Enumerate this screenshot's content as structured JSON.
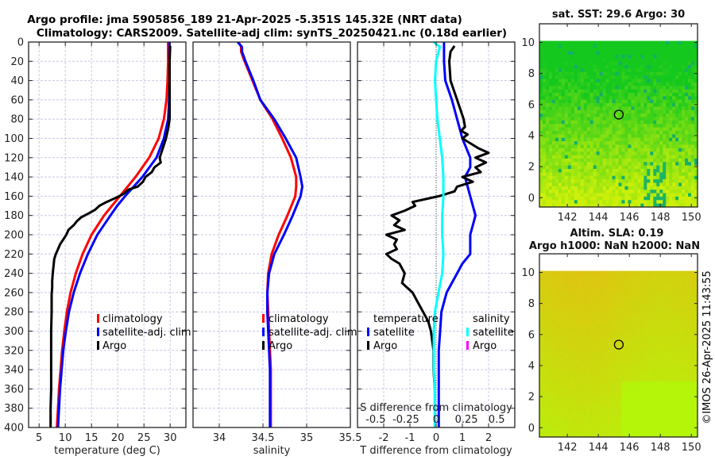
{
  "header": {
    "title_line1": "Argo profile: jma 5905856_189 21-Apr-2025 -5.351S 145.32E (NRT data)",
    "title_line2": "Climatology: CARS2009. Satellite-adj clim: synTS_20250421.nc (0.18d earlier)"
  },
  "colors": {
    "climatology": "#ff0000",
    "satellite": "#0000ff",
    "argo": "#000000",
    "salinity_satellite": "#00ffff",
    "salinity_argo": "#ff00ff",
    "grid": "#c8c8e6"
  },
  "chart_data": [
    {
      "type": "line",
      "name": "temperature-profile",
      "xlabel": "temperature (deg C)",
      "ylabel": "",
      "xlim": [
        3.0,
        33.0
      ],
      "ylim": [
        400,
        0
      ],
      "xticks": [
        5,
        10,
        15,
        20,
        25,
        30
      ],
      "yticks": [
        0,
        20,
        40,
        60,
        80,
        100,
        120,
        140,
        160,
        180,
        200,
        220,
        240,
        260,
        280,
        300,
        320,
        340,
        360,
        380,
        400
      ],
      "grid": true,
      "legend": {
        "placement": "right-center",
        "entries": [
          "climatology",
          "satellite-adj. clim",
          "Argo"
        ]
      },
      "series": [
        {
          "name": "climatology",
          "color": "#ff0000",
          "depth": [
            0,
            20,
            40,
            60,
            80,
            100,
            120,
            140,
            160,
            170,
            180,
            200,
            220,
            240,
            260,
            280,
            300,
            320,
            340,
            360,
            380,
            400
          ],
          "values": [
            29.6,
            29.6,
            29.5,
            29.3,
            28.8,
            27.8,
            26.0,
            23.4,
            20.4,
            18.9,
            17.4,
            15.0,
            13.3,
            12.0,
            11.0,
            10.3,
            9.8,
            9.4,
            9.1,
            8.8,
            8.6,
            8.4
          ]
        },
        {
          "name": "satellite-adj. clim",
          "color": "#0000ff",
          "depth": [
            0,
            20,
            40,
            60,
            80,
            100,
            120,
            140,
            160,
            170,
            180,
            200,
            220,
            240,
            260,
            280,
            300,
            320,
            340,
            360,
            380,
            400
          ],
          "values": [
            29.9,
            29.9,
            29.9,
            29.8,
            29.6,
            28.8,
            27.4,
            24.7,
            21.4,
            19.9,
            18.6,
            16.1,
            14.3,
            12.8,
            11.6,
            10.7,
            10.1,
            9.6,
            9.3,
            9.0,
            8.8,
            8.6
          ]
        },
        {
          "name": "Argo",
          "color": "#000000",
          "depth": [
            4,
            20,
            40,
            60,
            80,
            90,
            100,
            110,
            120,
            125,
            130,
            135,
            140,
            145,
            150,
            153,
            158,
            162,
            167,
            170,
            174,
            178,
            182,
            186,
            190,
            195,
            200,
            205,
            210,
            215,
            220,
            225,
            230,
            240,
            248,
            255,
            262,
            270,
            280,
            300,
            320,
            340,
            360,
            380,
            400
          ],
          "values": [
            30.0,
            29.9,
            29.9,
            29.9,
            29.9,
            29.6,
            29.2,
            28.6,
            28.0,
            28.2,
            27.0,
            26.5,
            25.3,
            24.8,
            23.8,
            22.1,
            21.0,
            19.5,
            17.5,
            16.5,
            15.7,
            14.4,
            13.0,
            12.2,
            11.6,
            10.6,
            10.2,
            9.6,
            9.0,
            8.6,
            8.2,
            7.9,
            7.8,
            7.6,
            7.5,
            7.5,
            7.4,
            7.4,
            7.4,
            7.3,
            7.3,
            7.3,
            7.3,
            7.2,
            7.2
          ]
        }
      ]
    },
    {
      "type": "line",
      "name": "salinity-profile",
      "xlabel": "salinity",
      "xlim": [
        33.7,
        35.5
      ],
      "ylim": [
        400,
        0
      ],
      "xticks": [
        34,
        34.5,
        35,
        35.5
      ],
      "grid": true,
      "legend": {
        "placement": "right-center",
        "entries": [
          "climatology",
          "satellite-adj. clim",
          "Argo"
        ]
      },
      "series": [
        {
          "name": "climatology",
          "color": "#ff0000",
          "depth": [
            0,
            5,
            10,
            20,
            40,
            60,
            80,
            100,
            120,
            140,
            150,
            160,
            180,
            200,
            220,
            240,
            260,
            280,
            300,
            320,
            340,
            360,
            380,
            400
          ],
          "values": [
            34.22,
            34.25,
            34.25,
            34.29,
            34.38,
            34.47,
            34.61,
            34.72,
            34.82,
            34.88,
            34.88,
            34.87,
            34.78,
            34.68,
            34.6,
            34.56,
            34.55,
            34.56,
            34.57,
            34.58,
            34.59,
            34.59,
            34.59,
            34.59
          ]
        },
        {
          "name": "satellite-adj. clim",
          "color": "#0000ff",
          "depth": [
            0,
            5,
            10,
            20,
            40,
            60,
            80,
            100,
            120,
            140,
            150,
            160,
            180,
            200,
            220,
            240,
            260,
            280,
            300,
            320,
            340,
            360,
            380,
            400
          ],
          "values": [
            34.21,
            34.26,
            34.26,
            34.3,
            34.39,
            34.47,
            34.63,
            34.76,
            34.88,
            34.93,
            34.95,
            34.93,
            34.84,
            34.74,
            34.63,
            34.57,
            34.55,
            34.55,
            34.56,
            34.57,
            34.58,
            34.58,
            34.58,
            34.58
          ]
        }
      ]
    },
    {
      "type": "line",
      "name": "difference-profile",
      "xlabel": "T difference from climatology",
      "xlim": [
        -3,
        3
      ],
      "ylim": [
        400,
        0
      ],
      "xticks": [
        -2,
        -1,
        0,
        1,
        2
      ],
      "secondary_axis": {
        "label": "S difference from climatology",
        "xlim": [
          -0.65,
          0.65
        ],
        "xticks": [
          -0.5,
          -0.25,
          0,
          0.25,
          0.5
        ],
        "xticklabels": [
          "-0.5",
          "-0.25",
          "0",
          "0.25",
          "0.5"
        ]
      },
      "grid": true,
      "legend": {
        "placement": "bottom",
        "groups": [
          {
            "title": "temperature",
            "entries": [
              "satellite",
              "Argo"
            ]
          },
          {
            "title": "salinity",
            "entries": [
              "satellite",
              "Argo"
            ]
          }
        ]
      },
      "series": [
        {
          "name": "temperature satellite",
          "color": "#0000ff",
          "axis": "T",
          "depth": [
            0,
            20,
            40,
            60,
            80,
            100,
            120,
            130,
            140,
            150,
            160,
            170,
            180,
            190,
            200,
            210,
            220,
            230,
            240,
            260,
            280,
            300,
            320,
            340,
            360,
            380,
            400
          ],
          "values": [
            0.3,
            0.3,
            0.35,
            0.6,
            0.8,
            1.0,
            1.3,
            1.3,
            1.1,
            1.2,
            1.3,
            1.4,
            1.5,
            1.4,
            1.3,
            1.3,
            1.3,
            1.0,
            0.8,
            0.4,
            0.2,
            0.15,
            0.1,
            0.1,
            0.1,
            0.1,
            0.1
          ]
        },
        {
          "name": "temperature Argo",
          "color": "#000000",
          "axis": "T",
          "depth": [
            4,
            10,
            20,
            40,
            60,
            80,
            88,
            92,
            96,
            100,
            105,
            110,
            115,
            120,
            125,
            130,
            135,
            140,
            145,
            150,
            155,
            160,
            163,
            166,
            170,
            175,
            180,
            185,
            190,
            195,
            200,
            205,
            210,
            215,
            220,
            225,
            230,
            240,
            250,
            260,
            270,
            280,
            290,
            300,
            320,
            340,
            360,
            380,
            400
          ],
          "values": [
            0.7,
            0.55,
            0.5,
            0.55,
            0.8,
            1.05,
            1.1,
            0.95,
            1.2,
            1.0,
            1.3,
            1.6,
            2.0,
            1.5,
            1.9,
            1.5,
            1.7,
            1.0,
            1.4,
            0.8,
            0.7,
            0.1,
            -0.4,
            -0.9,
            -0.8,
            -1.2,
            -1.7,
            -1.4,
            -1.6,
            -1.2,
            -1.9,
            -1.5,
            -1.6,
            -1.5,
            -1.9,
            -1.7,
            -1.4,
            -1.2,
            -1.3,
            -0.9,
            -0.7,
            -0.5,
            -0.3,
            -0.2,
            -0.1,
            -0.1,
            -0.05,
            -0.05,
            -0.05
          ]
        },
        {
          "name": "salinity satellite",
          "color": "#00ffff",
          "axis": "S",
          "depth": [
            0,
            5,
            20,
            40,
            60,
            80,
            100,
            120,
            140,
            160,
            180,
            200,
            220,
            240,
            260,
            280,
            300,
            320,
            340,
            360,
            380,
            400
          ],
          "values": [
            -0.02,
            0.03,
            0.0,
            -0.01,
            0.0,
            0.01,
            0.03,
            0.05,
            0.06,
            0.06,
            0.05,
            0.05,
            0.06,
            0.05,
            0.02,
            -0.01,
            -0.02,
            -0.02,
            -0.02,
            -0.01,
            -0.01,
            -0.01
          ]
        }
      ]
    },
    {
      "type": "heatmap",
      "name": "sst-map",
      "title": "sat. SST: 29.6 Argo: 30",
      "xlim": [
        140.2,
        150.4
      ],
      "ylim": [
        -0.6,
        11.2
      ],
      "xticks": [
        142,
        144,
        146,
        148,
        150
      ],
      "yticks": [
        0,
        2,
        4,
        6,
        8,
        10
      ],
      "data_top_lat": 10.1,
      "marker": {
        "lon": 145.32,
        "lat": 5.35,
        "shape": "circle"
      }
    },
    {
      "type": "heatmap",
      "name": "sla-map",
      "title_line1": "Altim. SLA: 0.19",
      "title_line2": "Argo h1000: NaN h2000: NaN",
      "xlim": [
        140.2,
        150.4
      ],
      "ylim": [
        -0.6,
        11.2
      ],
      "xticks": [
        142,
        144,
        146,
        148,
        150
      ],
      "yticks": [
        0,
        2,
        4,
        6,
        8,
        10
      ],
      "data_top_lat": 10.1,
      "marker": {
        "lon": 145.32,
        "lat": 5.35,
        "shape": "circle"
      }
    }
  ],
  "legends": {
    "clim": "climatology",
    "sat_clim": "satellite-adj. clim",
    "argo": "Argo",
    "temperature": "temperature",
    "salinity": "salinity",
    "satellite": "satellite"
  },
  "copyright": "©IMOS 26-Apr-2025 11:43:55"
}
